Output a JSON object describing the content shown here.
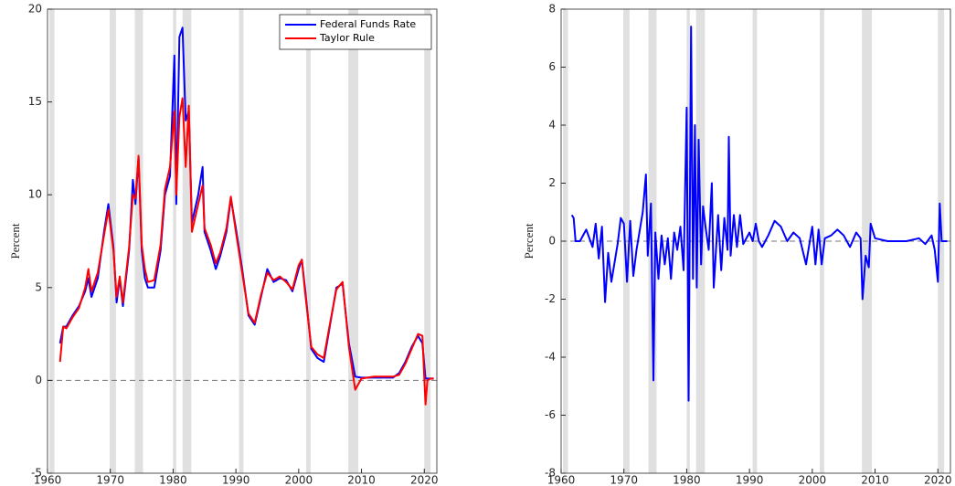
{
  "chart_data": [
    {
      "type": "line",
      "y_label": "Percent",
      "legend": "northeast",
      "xlim": [
        1960,
        2022
      ],
      "ylim": [
        -5,
        20
      ],
      "xticks": [
        1960,
        1970,
        1980,
        1990,
        2000,
        2010,
        2020
      ],
      "yticks": [
        -5,
        0,
        5,
        10,
        15,
        20
      ],
      "reference_line": 0,
      "shaded_regions": [
        [
          1960.3,
          1961.1
        ],
        [
          1969.9,
          1970.9
        ],
        [
          1973.9,
          1975.2
        ],
        [
          1980.0,
          1980.5
        ],
        [
          1981.5,
          1982.9
        ],
        [
          1990.5,
          1991.2
        ],
        [
          2001.2,
          2001.9
        ],
        [
          2007.9,
          2009.5
        ],
        [
          2020.0,
          2021.0
        ]
      ],
      "x": [
        1962,
        1962.5,
        1963,
        1964,
        1965,
        1966,
        1966.5,
        1967,
        1968,
        1969,
        1969.7,
        1970.5,
        1971,
        1971.5,
        1972,
        1973,
        1973.6,
        1974,
        1974.5,
        1975,
        1975.5,
        1976,
        1977,
        1978,
        1978.7,
        1979.5,
        1980.2,
        1980.5,
        1981,
        1981.5,
        1982,
        1982.5,
        1983,
        1984,
        1984.7,
        1985,
        1986,
        1986.8,
        1987.5,
        1988.5,
        1989.2,
        1990,
        1991,
        1992,
        1993,
        1994,
        1995,
        1996,
        1997,
        1998,
        1999,
        2000,
        2000.5,
        2001,
        2002,
        2003,
        2004,
        2005,
        2006,
        2007,
        2008,
        2009,
        2010,
        2012,
        2015,
        2016,
        2017,
        2018,
        2019,
        2019.7,
        2020.2,
        2020.5,
        2021,
        2021.5
      ],
      "series": [
        {
          "name": "Federal Funds Rate",
          "color": "#0000ff",
          "values": [
            2.0,
            2.9,
            2.9,
            3.5,
            4.0,
            4.8,
            5.5,
            4.5,
            5.5,
            8.0,
            9.5,
            7.2,
            4.2,
            5.5,
            4.0,
            7.0,
            10.8,
            9.5,
            12.0,
            7.0,
            5.5,
            5.0,
            5.0,
            7.0,
            10.0,
            11.0,
            17.5,
            9.5,
            18.5,
            19.0,
            14.0,
            14.5,
            8.5,
            10.0,
            11.5,
            8.0,
            7.0,
            6.0,
            6.7,
            8.0,
            9.8,
            8.2,
            6.0,
            3.5,
            3.0,
            4.5,
            6.0,
            5.3,
            5.5,
            5.4,
            4.8,
            6.0,
            6.5,
            5.0,
            1.7,
            1.2,
            1.0,
            3.0,
            5.0,
            5.2,
            2.0,
            0.2,
            0.15,
            0.15,
            0.15,
            0.4,
            1.0,
            1.8,
            2.4,
            2.0,
            0.1,
            0.1,
            0.1,
            0.1
          ]
        },
        {
          "name": "Taylor Rule",
          "color": "#ff0000",
          "values": [
            1.0,
            2.9,
            2.8,
            3.4,
            3.9,
            5.0,
            6.0,
            4.8,
            5.8,
            7.8,
            9.2,
            7.0,
            4.5,
            5.6,
            4.2,
            7.2,
            10.0,
            9.8,
            12.1,
            7.3,
            6.0,
            5.3,
            5.4,
            7.3,
            10.3,
            11.5,
            14.5,
            10.0,
            14.2,
            15.2,
            11.5,
            14.8,
            8.0,
            9.5,
            10.5,
            8.2,
            7.3,
            6.3,
            6.9,
            8.2,
            9.9,
            8.0,
            5.8,
            3.6,
            3.1,
            4.6,
            5.8,
            5.4,
            5.6,
            5.3,
            4.9,
            6.2,
            6.5,
            4.8,
            1.8,
            1.4,
            1.2,
            3.1,
            4.9,
            5.3,
            1.8,
            -0.5,
            0.1,
            0.2,
            0.2,
            0.3,
            0.9,
            1.7,
            2.5,
            2.4,
            -1.3,
            0.0,
            0.1,
            0.1
          ]
        }
      ]
    },
    {
      "type": "line",
      "y_label": "Percent",
      "xlim": [
        1960,
        2022
      ],
      "ylim": [
        -8,
        8
      ],
      "xticks": [
        1960,
        1970,
        1980,
        1990,
        2000,
        2010,
        2020
      ],
      "yticks": [
        -8,
        -6,
        -4,
        -2,
        0,
        2,
        4,
        6,
        8
      ],
      "reference_line": 0,
      "shaded_regions": [
        [
          1960.3,
          1961.1
        ],
        [
          1969.9,
          1970.9
        ],
        [
          1973.9,
          1975.2
        ],
        [
          1980.0,
          1980.5
        ],
        [
          1981.5,
          1982.9
        ],
        [
          1990.5,
          1991.2
        ],
        [
          2001.2,
          2001.9
        ],
        [
          2007.9,
          2009.5
        ],
        [
          2020.0,
          2021.0
        ]
      ],
      "x": [
        1961.7,
        1962,
        1962.3,
        1963,
        1964,
        1965,
        1965.5,
        1966,
        1966.5,
        1967,
        1967.5,
        1968,
        1969,
        1969.5,
        1970,
        1970.5,
        1971,
        1971.5,
        1972,
        1973,
        1973.5,
        1973.8,
        1974.3,
        1974.7,
        1975,
        1975.5,
        1976,
        1976.5,
        1977,
        1977.5,
        1978,
        1978.5,
        1979,
        1979.5,
        1980,
        1980.3,
        1980.7,
        1981,
        1981.3,
        1981.6,
        1981.9,
        1982.3,
        1982.6,
        1983,
        1983.5,
        1984,
        1984.3,
        1985,
        1985.5,
        1986,
        1986.5,
        1986.7,
        1987,
        1987.5,
        1988,
        1988.5,
        1989,
        1990,
        1990.5,
        1991,
        1991.5,
        1992,
        1993,
        1994,
        1995,
        1996,
        1997,
        1998,
        1999,
        2000,
        2000.5,
        2001,
        2001.5,
        2002,
        2003,
        2004,
        2005,
        2006,
        2007,
        2007.7,
        2008,
        2008.5,
        2009,
        2009.3,
        2010,
        2012,
        2015,
        2017,
        2018,
        2019,
        2019.5,
        2020,
        2020.3,
        2020.6,
        2021.5
      ],
      "series": [
        {
          "color": "#0000ff",
          "values": [
            0.9,
            0.8,
            0,
            0,
            0.4,
            -0.2,
            0.6,
            -0.6,
            0.5,
            -2.1,
            -0.4,
            -1.4,
            -0.1,
            0.8,
            0.6,
            -1.4,
            0.7,
            -1.2,
            -0.3,
            1.0,
            2.3,
            -0.5,
            1.3,
            -4.8,
            0.3,
            -1.3,
            0.2,
            -0.8,
            0.1,
            -1.3,
            0.3,
            -0.3,
            0.5,
            -1.0,
            4.6,
            -5.5,
            7.4,
            -1.3,
            4.0,
            -1.6,
            3.5,
            -0.8,
            1.2,
            0.5,
            -0.3,
            2.0,
            -1.6,
            0.9,
            -1.0,
            0.8,
            -0.3,
            3.6,
            -0.5,
            0.9,
            -0.2,
            0.9,
            -0.1,
            0.3,
            0,
            0.6,
            0,
            -0.2,
            0.2,
            0.7,
            0.5,
            0,
            0.3,
            0.1,
            -0.8,
            0.5,
            -0.8,
            0.4,
            -0.8,
            0.1,
            0.2,
            0.4,
            0.2,
            -0.2,
            0.3,
            0.1,
            -2.0,
            -0.5,
            -0.9,
            0.6,
            0.1,
            0,
            0,
            0.1,
            -0.1,
            0.2,
            -0.3,
            -1.4,
            1.3,
            0,
            0
          ]
        }
      ]
    }
  ]
}
